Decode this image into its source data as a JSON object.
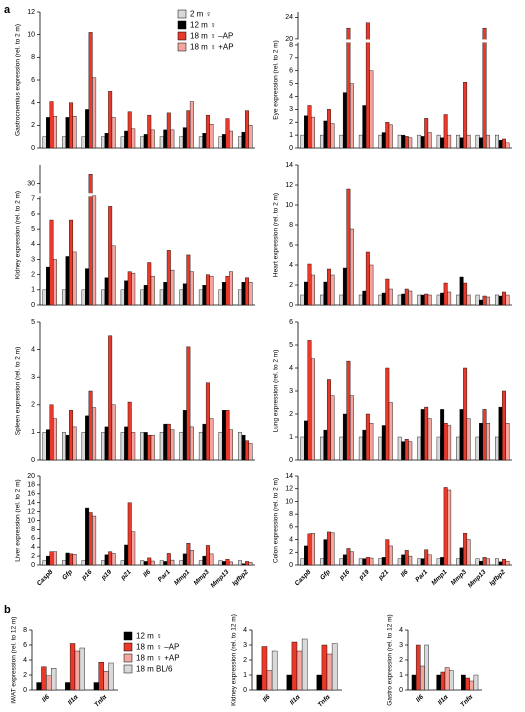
{
  "chart_data": [
    {
      "type": "bar",
      "label": "a",
      "categories": [
        "Casp8",
        "Gfp",
        "p16",
        "p19",
        "p21",
        "Il6",
        "Par1",
        "Mmp1",
        "Mmp3",
        "Mmp13",
        "Igfbp2"
      ],
      "series": [
        {
          "name": "2 m ♀",
          "color": "#d9d9d9"
        },
        {
          "name": "12 m ♀",
          "color": "#000000"
        },
        {
          "name": "18 m ♀ –AP",
          "color": "#e8392a"
        },
        {
          "name": "18 m ♀ +AP",
          "color": "#f4a6a0"
        }
      ],
      "charts": [
        {
          "ylabel": "Gastrocnemius expression (rel. to 2 m)",
          "ylim": [
            0,
            12
          ],
          "yticks": [
            0,
            2,
            4,
            6,
            8,
            10,
            12
          ],
          "values": [
            [
              1,
              1,
              1,
              1,
              1,
              1,
              1,
              1,
              1,
              1,
              1
            ],
            [
              2.7,
              2.7,
              3.4,
              1.3,
              1.5,
              1.2,
              1.6,
              1.8,
              1.3,
              1.2,
              1.4
            ],
            [
              4.1,
              4.0,
              10.2,
              5.0,
              3.2,
              2.9,
              3.1,
              3.3,
              2.9,
              2.6,
              3.3
            ],
            [
              2.8,
              2.8,
              6.2,
              2.7,
              1.7,
              1.6,
              1.6,
              4.1,
              2.1,
              1.5,
              2.0
            ]
          ]
        },
        {
          "ylabel": "Eye expression (rel. to 2 m)",
          "ylim": [
            0,
            25
          ],
          "ybreak": [
            8,
            20
          ],
          "yticks": [
            0,
            1,
            2,
            3,
            4,
            5,
            6,
            7,
            8,
            20,
            24
          ],
          "values": [
            [
              1,
              1,
              1,
              1,
              1,
              1,
              1,
              1,
              1,
              1,
              1
            ],
            [
              2.5,
              2.1,
              4.3,
              3.3,
              1.2,
              1.0,
              0.9,
              0.8,
              0.8,
              0.8,
              0.6
            ],
            [
              3.3,
              3.0,
              22,
              23,
              2.0,
              0.9,
              2.3,
              2.6,
              5.1,
              22,
              0.7
            ],
            [
              2.4,
              1.9,
              5.0,
              6.0,
              1.8,
              0.8,
              1.2,
              1.0,
              1.0,
              1.0,
              0.4
            ]
          ]
        },
        {
          "ylabel": "Kidney expression (rel. to 2 m)",
          "ylim": [
            0,
            34
          ],
          "ybreak": [
            7,
            28
          ],
          "yticks": [
            0,
            1,
            2,
            3,
            4,
            5,
            6,
            7,
            30
          ],
          "values": [
            [
              1,
              1,
              1,
              1,
              1,
              1,
              1,
              1,
              1,
              1,
              1
            ],
            [
              2.5,
              3.2,
              2.4,
              1.8,
              1.6,
              1.3,
              1.5,
              1.4,
              1.3,
              1.5,
              1.5
            ],
            [
              5.6,
              5.6,
              32,
              6.5,
              2.2,
              2.8,
              3.6,
              3.3,
              2.0,
              1.9,
              1.8
            ],
            [
              3.0,
              3.5,
              10,
              3.9,
              2.1,
              1.9,
              2.3,
              2.2,
              1.9,
              2.2,
              1.5
            ]
          ]
        },
        {
          "ylabel": "Heart expression (rel. to 2 m)",
          "ylim": [
            0,
            14
          ],
          "yticks": [
            0,
            2,
            4,
            6,
            8,
            10,
            12,
            14
          ],
          "values": [
            [
              1,
              1,
              1,
              1,
              1,
              1,
              1,
              1,
              1,
              1,
              1
            ],
            [
              2.3,
              2.3,
              3.7,
              1.4,
              1.2,
              1.1,
              1.0,
              1.2,
              2.8,
              0.5,
              0.9
            ],
            [
              4.1,
              3.6,
              11.6,
              5.3,
              2.6,
              1.6,
              1.1,
              2.2,
              2.2,
              0.9,
              1.3
            ],
            [
              3.0,
              3.0,
              7.6,
              4.0,
              1.6,
              1.4,
              1.0,
              1.3,
              1.0,
              0.8,
              1.0
            ]
          ]
        },
        {
          "ylabel": "Spleen expression (rel. to 2 m)",
          "ylim": [
            0,
            5
          ],
          "yticks": [
            0,
            1,
            2,
            3,
            4,
            5
          ],
          "values": [
            [
              1,
              1,
              1,
              1,
              1,
              1,
              1,
              1,
              1,
              1,
              1
            ],
            [
              1.1,
              0.9,
              1.6,
              1.2,
              1.2,
              1.0,
              1.3,
              1.8,
              1.3,
              1.8,
              0.9
            ],
            [
              2.0,
              1.8,
              2.5,
              4.5,
              2.1,
              0.9,
              1.3,
              4.1,
              2.8,
              1.8,
              0.7
            ],
            [
              1.5,
              1.2,
              1.9,
              2.0,
              1.0,
              0.9,
              1.1,
              1.2,
              1.5,
              1.1,
              0.6
            ]
          ]
        },
        {
          "ylabel": "Lung expression (rel. to 2 m)",
          "ylim": [
            0,
            6
          ],
          "yticks": [
            0,
            1,
            2,
            3,
            4,
            5,
            6
          ],
          "values": [
            [
              1,
              1,
              1,
              1,
              1,
              1,
              1,
              1,
              1,
              1,
              1
            ],
            [
              1.7,
              1.3,
              2.0,
              1.3,
              1.5,
              0.8,
              2.2,
              2.2,
              2.2,
              1.6,
              2.3
            ],
            [
              5.2,
              3.5,
              4.3,
              2.0,
              4.0,
              0.9,
              2.3,
              1.6,
              4.0,
              2.2,
              3.0
            ],
            [
              4.4,
              2.8,
              2.8,
              1.6,
              2.5,
              0.8,
              1.8,
              1.5,
              1.8,
              1.6,
              1.6
            ]
          ]
        },
        {
          "ylabel": "Liver expression (rel. to 2 m)",
          "ylim": [
            0,
            20
          ],
          "yticks": [
            0,
            2,
            4,
            6,
            8,
            10,
            12,
            14,
            16,
            18,
            20
          ],
          "values": [
            [
              1,
              1,
              1,
              1,
              1,
              1,
              1,
              1,
              1,
              1,
              1
            ],
            [
              2.0,
              2.7,
              12.8,
              2.3,
              4.5,
              0.8,
              0.8,
              2.5,
              2.0,
              0.8,
              0.3
            ],
            [
              3.0,
              2.5,
              11.8,
              3.0,
              14,
              1.6,
              2.6,
              4.9,
              4.4,
              1.3,
              0.8
            ],
            [
              3.0,
              2.4,
              11.0,
              2.6,
              7.5,
              0.9,
              1.1,
              3.3,
              2.5,
              0.7,
              0.6
            ]
          ]
        },
        {
          "ylabel": "Colon expression (rel. to 2 m)",
          "ylim": [
            0,
            14
          ],
          "yticks": [
            0,
            2,
            4,
            6,
            8,
            10,
            12,
            14
          ],
          "values": [
            [
              1,
              1,
              1,
              1,
              1,
              1,
              1,
              1,
              1,
              1,
              1
            ],
            [
              3.0,
              4.0,
              1.6,
              1.0,
              1.2,
              1.6,
              1.0,
              1.2,
              2.7,
              0.6,
              0.5
            ],
            [
              4.9,
              5.2,
              2.6,
              1.2,
              4.0,
              2.3,
              2.4,
              12.2,
              5.0,
              1.2,
              0.9
            ],
            [
              5.0,
              5.1,
              2.1,
              1.1,
              3.0,
              1.4,
              1.6,
              11.8,
              4.0,
              1.0,
              0.6
            ]
          ]
        }
      ]
    },
    {
      "type": "bar",
      "label": "b",
      "categories": [
        "Il6",
        "Il1α",
        "Tnfα"
      ],
      "series": [
        {
          "name": "12 m ♀",
          "color": "#000000"
        },
        {
          "name": "18 m ♀ –AP",
          "color": "#e8392a"
        },
        {
          "name": "18 m ♀ +AP",
          "color": "#f4a6a0"
        },
        {
          "name": "18 m BL/6",
          "color": "#d9d9d9"
        }
      ],
      "charts": [
        {
          "ylabel": "iWAT expression (rel. to 12 m)",
          "ylim": [
            0,
            8
          ],
          "yticks": [
            0,
            2,
            4,
            6,
            8
          ],
          "values": [
            [
              1,
              1,
              1
            ],
            [
              3.1,
              6.2,
              3.7
            ],
            [
              1.9,
              5.2,
              2.5
            ],
            [
              2.9,
              5.6,
              3.6
            ]
          ]
        },
        {
          "ylabel": "Kidney expression (rel. to 12 m)",
          "ylim": [
            0,
            4
          ],
          "yticks": [
            0,
            1,
            2,
            3,
            4
          ],
          "values": [
            [
              1,
              1,
              1
            ],
            [
              2.9,
              3.2,
              3.0
            ],
            [
              1.3,
              2.6,
              2.4
            ],
            [
              2.6,
              3.4,
              3.1
            ]
          ]
        },
        {
          "ylabel": "Gastro expression (rel. to 12 m)",
          "ylim": [
            0,
            4
          ],
          "yticks": [
            0,
            1,
            2,
            3,
            4
          ],
          "values": [
            [
              1,
              1,
              1
            ],
            [
              3.0,
              1.2,
              0.8
            ],
            [
              1.6,
              1.5,
              0.6
            ],
            [
              3.0,
              1.3,
              1.0
            ]
          ]
        }
      ]
    }
  ]
}
